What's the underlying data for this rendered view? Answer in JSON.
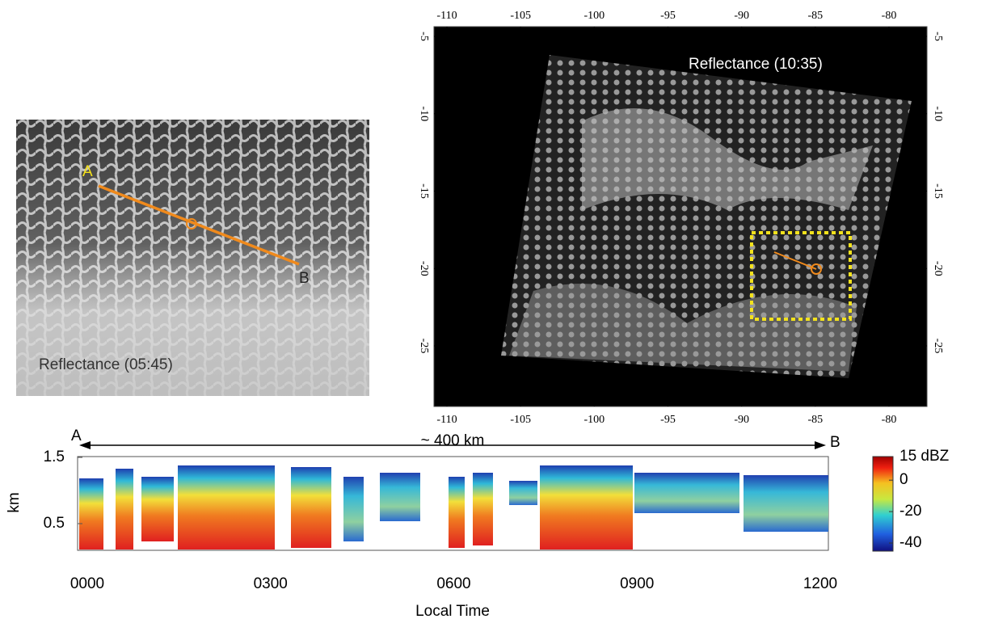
{
  "left_image": {
    "label": "Reflectance (05:45)",
    "point_a": "A",
    "point_b": "B"
  },
  "map": {
    "label": "Reflectance (10:35)",
    "xticks": [
      -110,
      -105,
      -100,
      -95,
      -90,
      -85,
      -80
    ],
    "yticks": [
      -5,
      -10,
      -15,
      -20,
      -25
    ]
  },
  "radar": {
    "ylabel": "km",
    "yticks": [
      1.5,
      0.5
    ],
    "xlabel": "Local Time",
    "xticks": [
      "0000",
      "0300",
      "0600",
      "0900",
      "1200"
    ],
    "point_a": "A",
    "point_b": "B",
    "distance": "~ 400 km",
    "colorbar": {
      "ticks": [
        {
          "value": 15,
          "label": "15 dBZ"
        },
        0,
        -20,
        -40
      ]
    }
  }
}
